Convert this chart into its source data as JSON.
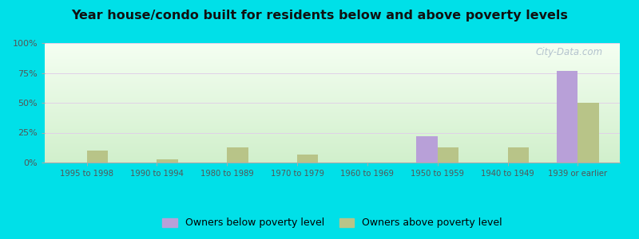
{
  "title": "Year house/condo built for residents below and above poverty levels",
  "categories": [
    "1995 to 1998",
    "1990 to 1994",
    "1980 to 1989",
    "1970 to 1979",
    "1960 to 1969",
    "1950 to 1959",
    "1940 to 1949",
    "1939 or earlier"
  ],
  "below_poverty": [
    0,
    0,
    0,
    0,
    0,
    22,
    0,
    77
  ],
  "above_poverty": [
    10,
    3,
    13,
    7,
    0,
    13,
    13,
    50
  ],
  "below_color": "#b8a0d8",
  "above_color": "#b8c488",
  "ylim": [
    0,
    100
  ],
  "yticks": [
    0,
    25,
    50,
    75,
    100
  ],
  "ytick_labels": [
    "0%",
    "25%",
    "50%",
    "75%",
    "100%"
  ],
  "outer_background": "#00e0e8",
  "bar_width": 0.3,
  "legend_below_label": "Owners below poverty level",
  "legend_above_label": "Owners above poverty level",
  "watermark": "City-Data.com"
}
